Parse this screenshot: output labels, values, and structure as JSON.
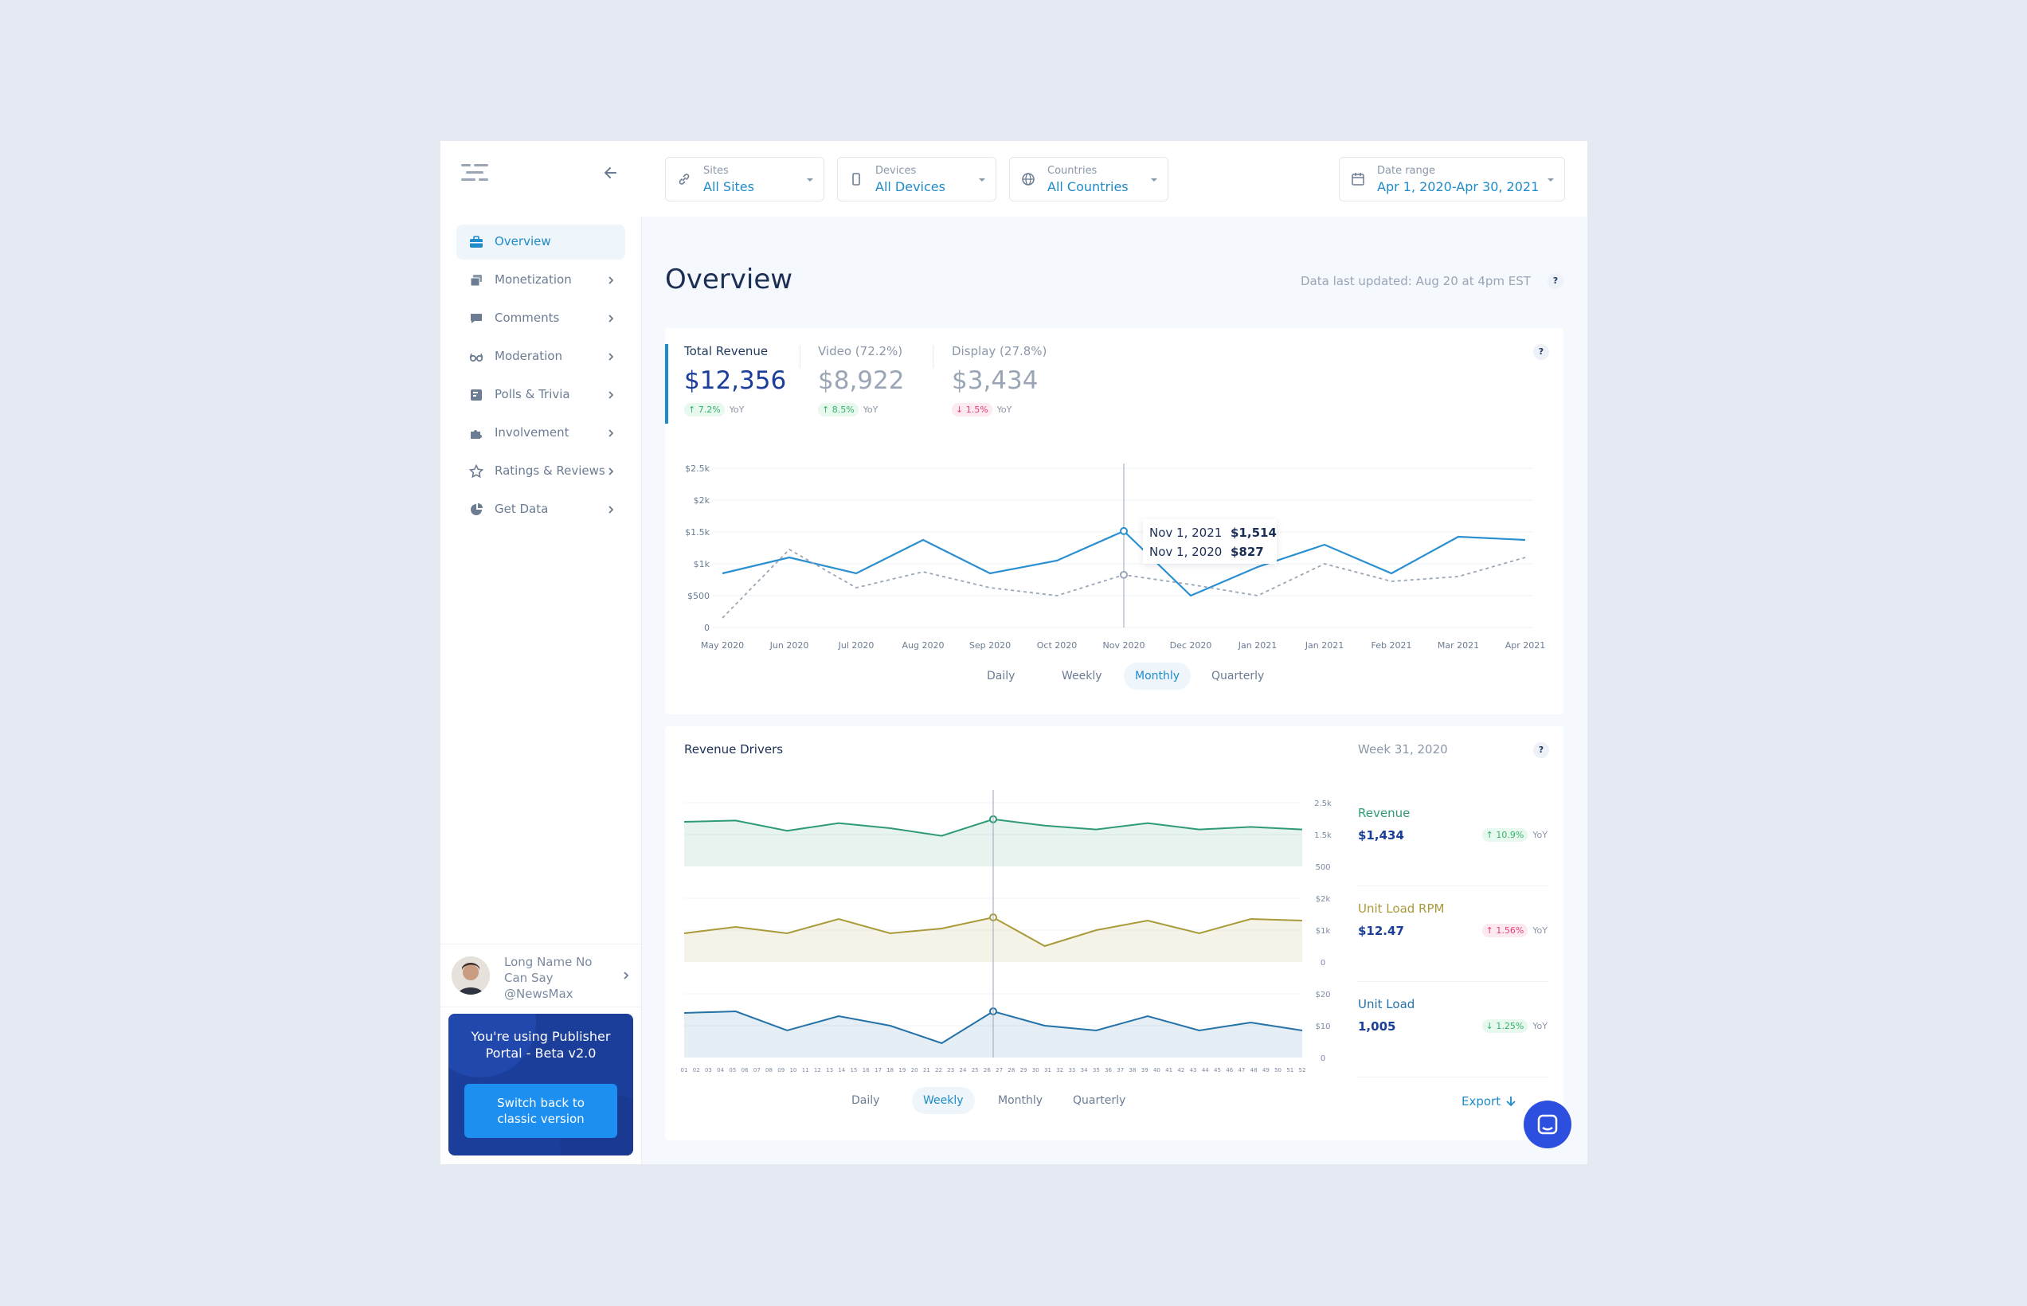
{
  "sidebar": {
    "items": [
      {
        "label": "Overview",
        "icon": "briefcase-icon",
        "active": true
      },
      {
        "label": "Monetization",
        "icon": "stack-icon"
      },
      {
        "label": "Comments",
        "icon": "comment-icon"
      },
      {
        "label": "Moderation",
        "icon": "glasses-icon"
      },
      {
        "label": "Polls & Trivia",
        "icon": "poll-icon"
      },
      {
        "label": "Involvement",
        "icon": "puzzle-icon"
      },
      {
        "label": "Ratings & Reviews",
        "icon": "star-icon"
      },
      {
        "label": "Get Data",
        "icon": "pie-icon"
      }
    ],
    "user": {
      "line1": "Long Name No",
      "line2": "Can Say",
      "line3": "@NewsMax"
    },
    "beta": {
      "line1": "You're using Publisher",
      "line2": "Portal  - Beta v2.0",
      "button_line1": "Switch back to",
      "button_line2": "classic version"
    }
  },
  "filters": {
    "sites": {
      "label": "Sites",
      "value": "All Sites"
    },
    "devices": {
      "label": "Devices",
      "value": "All Devices"
    },
    "countries": {
      "label": "Countries",
      "value": "All Countries"
    },
    "date": {
      "label": "Date range",
      "value": "Apr 1, 2020-Apr 30, 2021"
    }
  },
  "page": {
    "title": "Overview",
    "updated": "Data last updated: Aug 20 at 4pm EST",
    "help": "?"
  },
  "revenue": {
    "kpis": [
      {
        "label": "Total Revenue",
        "value": "$12,356",
        "delta": "7.2%",
        "dir": "up",
        "yoy": "YoY"
      },
      {
        "label": "Video (72.2%)",
        "value": "$8,922",
        "delta": "8.5%",
        "dir": "up",
        "yoy": "YoY"
      },
      {
        "label": "Display (27.8%)",
        "value": "$3,434",
        "delta": "1.5%",
        "dir": "down",
        "yoy": "YoY"
      }
    ],
    "tooltip": [
      {
        "date": "Nov 1, 2021",
        "value": "$1,514"
      },
      {
        "date": "Nov 1, 2020",
        "value": "$827"
      }
    ],
    "periods": [
      "Daily",
      "Weekly",
      "Monthly",
      "Quarterly"
    ],
    "active_period": "Monthly"
  },
  "drivers": {
    "title": "Revenue Drivers",
    "week": "Week 31, 2020",
    "periods": [
      "Daily",
      "Weekly",
      "Monthly",
      "Quarterly"
    ],
    "active_period": "Weekly",
    "export": "Export",
    "metrics": [
      {
        "label": "Revenue",
        "value": "$1,434",
        "delta": "10.9%",
        "dir": "up",
        "yoy": "YoY",
        "color": "#2f9a76"
      },
      {
        "label": "Unit Load RPM",
        "value": "$12.47",
        "delta": "1.56%",
        "dir": "up-pink",
        "yoy": "YoY",
        "color": "#a99a3a"
      },
      {
        "label": "Unit Load",
        "value": "1,005",
        "delta": "1.25%",
        "dir": "down-green",
        "yoy": "YoY",
        "color": "#2472a8"
      }
    ]
  },
  "chart_data": [
    {
      "type": "line",
      "x": [
        "May 2020",
        "Jun 2020",
        "Jul 2020",
        "Aug 2020",
        "Sep 2020",
        "Oct 2020",
        "Nov 2020",
        "Dec 2020",
        "Jan 2021",
        "Jan 2021",
        "Feb 2021",
        "Mar 2021",
        "Apr 2021"
      ],
      "y_ticks": [
        "0",
        "$500",
        "$1k",
        "$1.5k",
        "$2k",
        "$2.5k"
      ],
      "ylim": [
        0,
        2500
      ],
      "series": [
        {
          "values": [
            850,
            1100,
            850,
            1375,
            850,
            1050,
            1514,
            500,
            950,
            1300,
            850,
            1425,
            1375
          ],
          "color": "#2a8fd0",
          "style": "solid"
        },
        {
          "values": [
            150,
            1225,
            625,
            875,
            625,
            500,
            827,
            675,
            500,
            1000,
            725,
            800,
            1100
          ],
          "color": "#9aa6b6",
          "style": "dashed"
        }
      ],
      "highlight_index": 6
    },
    {
      "type": "area",
      "x": [
        "01",
        "02",
        "03",
        "04",
        "05",
        "06",
        "07",
        "08",
        "09",
        "10",
        "11",
        "12",
        "13",
        "14",
        "15",
        "16",
        "17",
        "18",
        "19",
        "20",
        "21",
        "22",
        "23",
        "24",
        "25",
        "26",
        "27",
        "28",
        "29",
        "30",
        "31",
        "32",
        "33",
        "34",
        "35",
        "36",
        "37",
        "38",
        "39",
        "40",
        "41",
        "42",
        "43",
        "44",
        "45",
        "46",
        "47",
        "48",
        "49",
        "50",
        "51",
        "52"
      ],
      "panels": [
        {
          "name": "Revenue",
          "y_ticks": [
            "500",
            "1.5k",
            "2.5k"
          ],
          "ylim": [
            0,
            2500
          ],
          "color": "#2f9a76",
          "values": [
            1750,
            1800,
            1400,
            1700,
            1500,
            1200,
            1850,
            1600,
            1450,
            1700,
            1450,
            1550,
            1450
          ]
        },
        {
          "name": "Unit Load RPM",
          "y_ticks": [
            "0",
            "$1k",
            "$2k"
          ],
          "ylim": [
            0,
            2000
          ],
          "color": "#a99a3a",
          "values": [
            900,
            1100,
            900,
            1350,
            900,
            1050,
            1400,
            500,
            1000,
            1300,
            900,
            1350,
            1300
          ]
        },
        {
          "name": "Unit Load",
          "y_ticks": [
            "0",
            "$10",
            "$20"
          ],
          "ylim": [
            0,
            20
          ],
          "color": "#2472a8",
          "values": [
            14,
            14.5,
            8.5,
            13,
            10,
            4.5,
            14.5,
            10,
            8.5,
            13,
            8.5,
            11,
            8.5
          ]
        }
      ],
      "highlight_label": "31"
    }
  ]
}
